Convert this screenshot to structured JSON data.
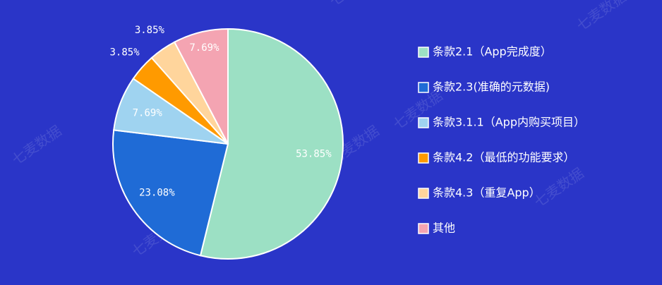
{
  "chart_data": {
    "type": "pie",
    "watermark": "七麦数据",
    "categories": [
      "条款2.1（App完成度）",
      "条款2.3(准确的元数据)",
      "条款3.1.1（App内购买项目）",
      "条款4.2（最低的功能要求）",
      "条款4.3（重复App）",
      "其他"
    ],
    "values": [
      53.85,
      23.08,
      7.69,
      3.85,
      3.85,
      7.69
    ],
    "value_labels": [
      "53.85%",
      "23.08%",
      "7.69%",
      "3.85%",
      "3.85%",
      "7.69%"
    ],
    "colors": [
      "#9ce0c4",
      "#1f6bd6",
      "#9fd3f0",
      "#ff9a00",
      "#ffd59c",
      "#f4a4b2"
    ],
    "legend": "right"
  }
}
